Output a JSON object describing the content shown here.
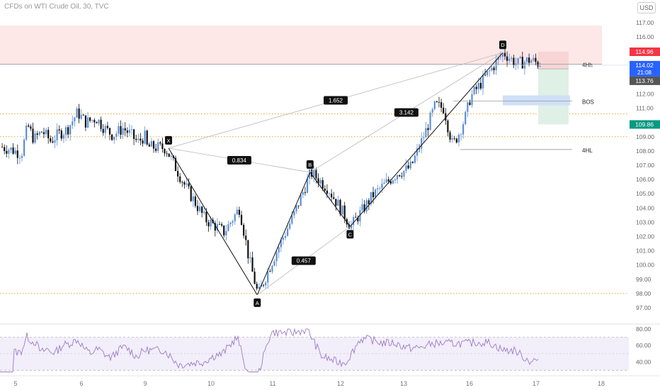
{
  "header": {
    "title": "CFDs on WTI Crude Oil, 30, TVC",
    "currency_button": "USD"
  },
  "colors": {
    "bull": "#5b8fd4",
    "bear": "#111111",
    "pattern_line": "#111111",
    "ratio_line": "#b9b9b9",
    "supply_zone": "#fde7e7",
    "dotted_level": "#f0a030",
    "stop_zone": "#f9d4d4",
    "target_zone": "#dff0e6",
    "bos_zone": "#cfe0f7",
    "rsi_line": "#9b7cc4",
    "rsi_band": "#f2eefa",
    "price_red": "#f23645",
    "price_blue": "#2962ff",
    "price_grey": "#555555",
    "price_green": "#089981"
  },
  "chart_data": [
    {
      "type": "candlestick",
      "title": "CFDs on WTI Crude Oil, 30, TVC",
      "price_axis": {
        "ticks": [
          "117.00",
          "116.00",
          "115.00",
          "114.00",
          "113.00",
          "112.00",
          "111.00",
          "110.00",
          "109.00",
          "108.00",
          "107.00",
          "106.00",
          "105.00",
          "104.00",
          "103.00",
          "102.00",
          "101.00",
          "100.00",
          "99.00",
          "98.00",
          "97.00"
        ],
        "ylim": [
          96.6,
          117.3
        ],
        "label_note": "tick labels reproduced as printed"
      },
      "time_axis": {
        "ticks": [
          "5",
          "6",
          "9",
          "10",
          "11",
          "12",
          "13",
          "16",
          "17",
          "18"
        ]
      },
      "price_labels": [
        {
          "key": "stop",
          "value": "114.96",
          "color": "#f23645"
        },
        {
          "key": "last",
          "value": "114.02",
          "countdown": "21:08",
          "color": "#2962ff"
        },
        {
          "key": "entry",
          "value": "113.76",
          "color": "#555555"
        },
        {
          "key": "target",
          "value": "109.86",
          "color": "#089981"
        }
      ],
      "pattern": {
        "points": [
          {
            "label": "X",
            "time": 9.3,
            "price": 108.2
          },
          {
            "label": "A",
            "time": 10.75,
            "price": 97.9
          },
          {
            "label": "B",
            "time": 11.55,
            "price": 106.5
          },
          {
            "label": "C",
            "time": 12.15,
            "price": 102.7
          },
          {
            "label": "D",
            "time": 16.5,
            "price": 114.9
          }
        ],
        "ratios": [
          {
            "value": "1.652",
            "from": "X",
            "to": "D"
          },
          {
            "value": "0.834",
            "from": "X",
            "to": "B"
          },
          {
            "value": "3.142",
            "from": "B",
            "to": "D"
          },
          {
            "value": "0.457",
            "from": "A",
            "to": "C"
          }
        ]
      },
      "levels": [
        {
          "label": "4Hh",
          "price": 114.1
        },
        {
          "label": "BOS",
          "price": 111.5
        },
        {
          "label": "4HL",
          "price": 108.1
        }
      ],
      "supply_zone": [
        114.1,
        117.0
      ],
      "dotted_levels": [
        110.6,
        109.0,
        98.0
      ]
    },
    {
      "type": "line",
      "title": "",
      "y_ticks": [
        "80.00",
        "60.00",
        "40.00"
      ],
      "ylim": [
        25,
        85
      ],
      "band": [
        30,
        70
      ],
      "mid": 50
    }
  ]
}
